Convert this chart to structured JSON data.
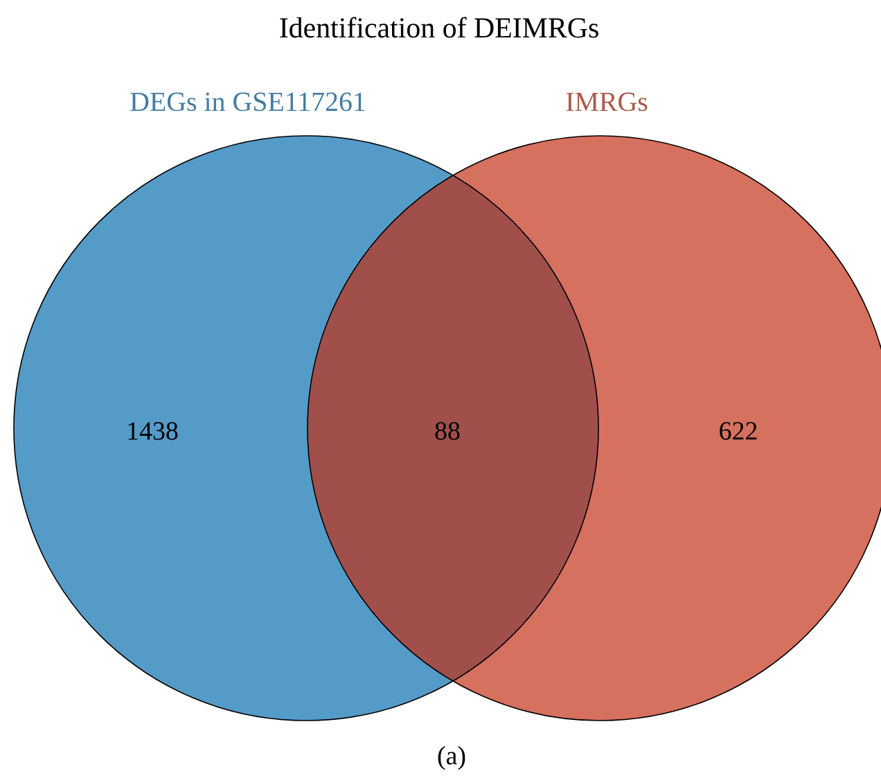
{
  "chart_data": {
    "type": "other",
    "title": "Identification of DEIMRGs",
    "categories": [
      "DEGs in GSE117261",
      null,
      "IMRGs"
    ],
    "values": [
      1438,
      88,
      622
    ],
    "colors": [
      "#559bc8",
      "#a14f4b",
      "#d6705f"
    ],
    "data_labels": true,
    "annotations": [
      "(a)"
    ]
  }
}
